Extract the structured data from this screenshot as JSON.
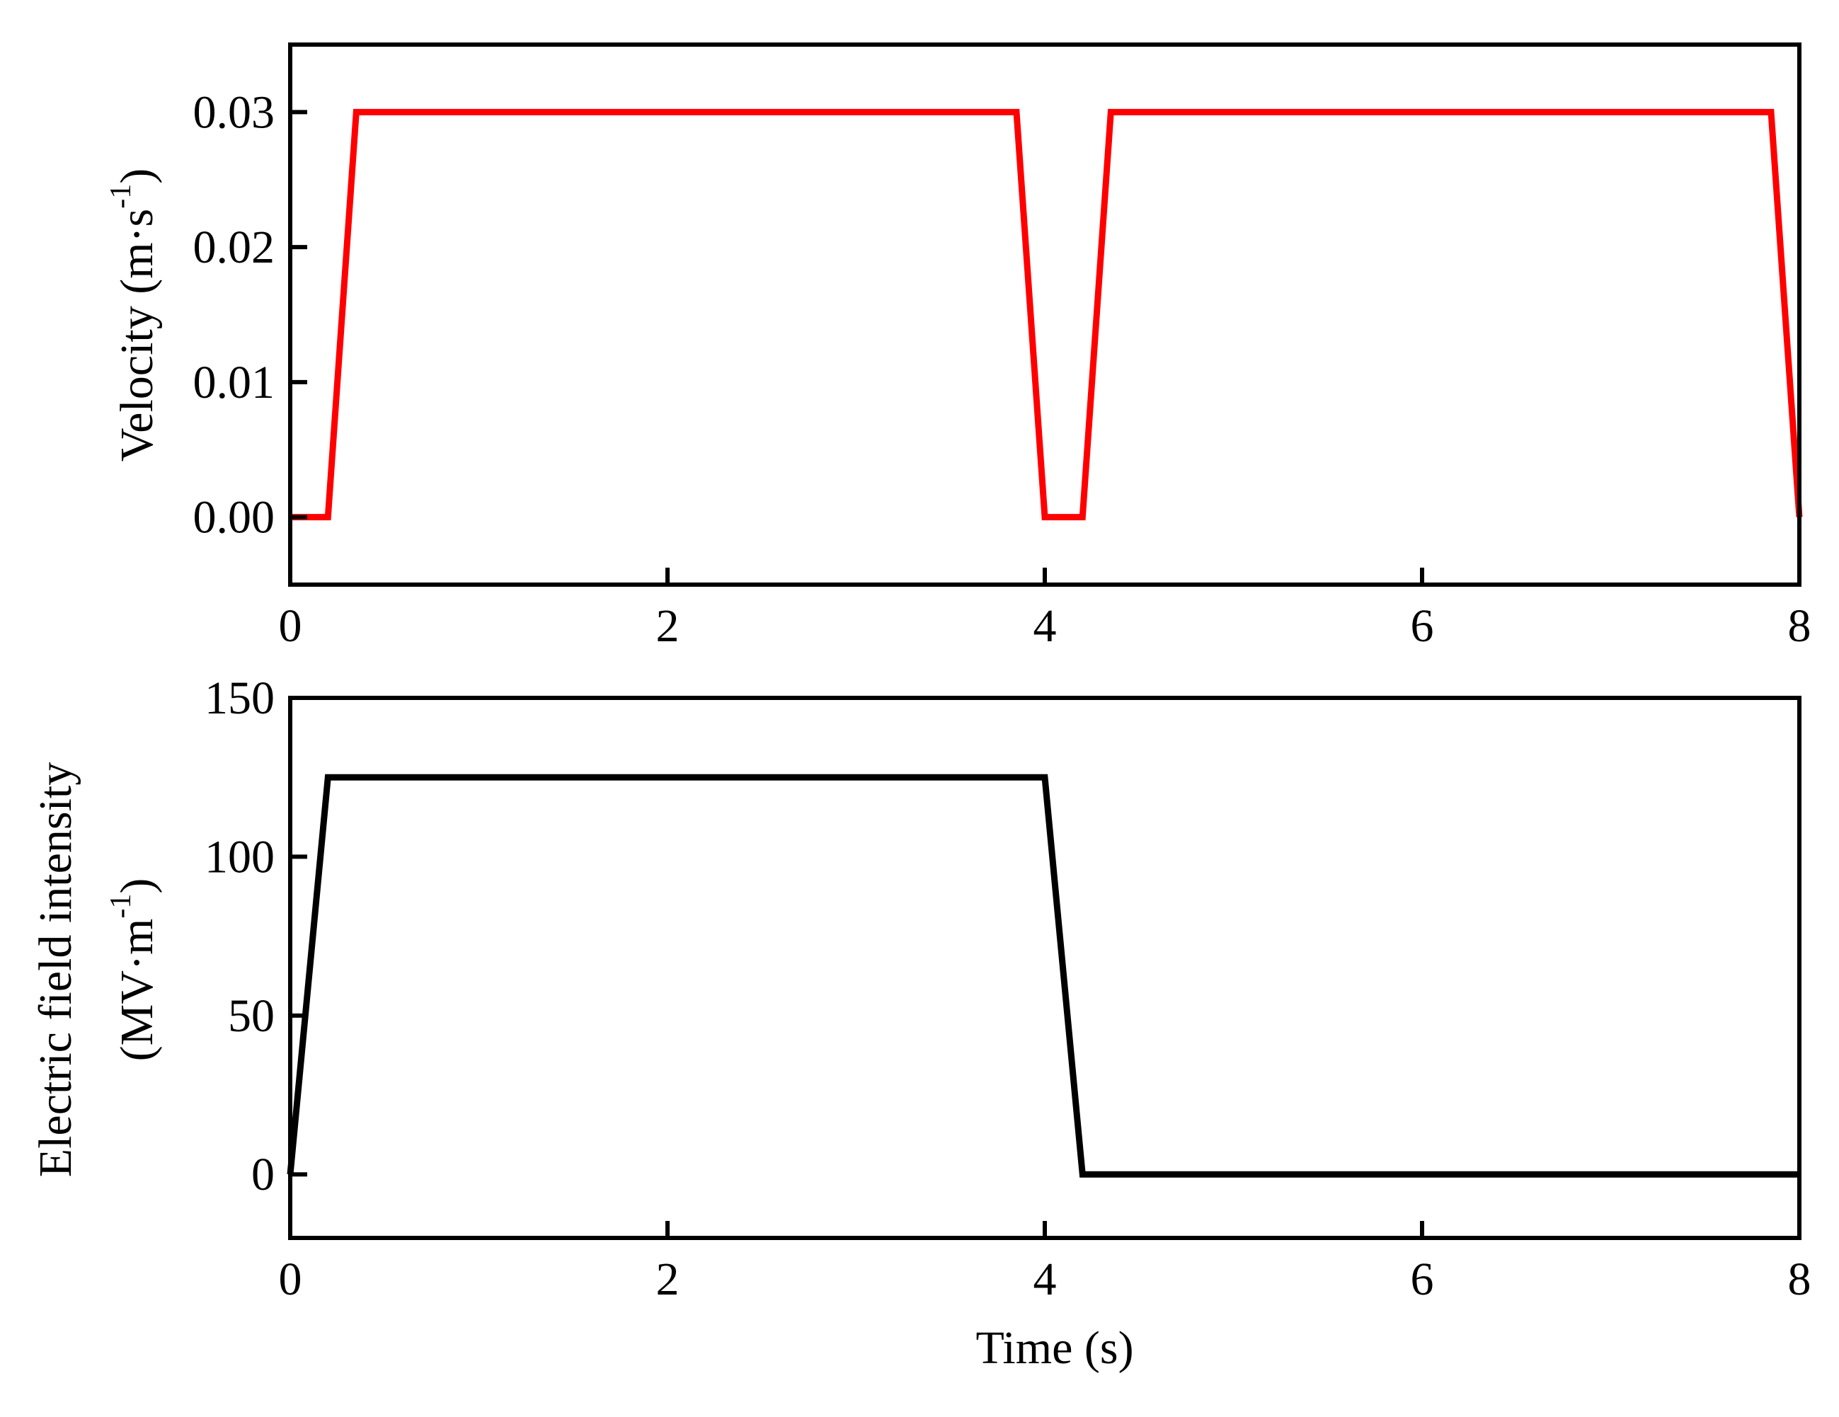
{
  "chart_data": [
    {
      "type": "line",
      "xlabel": "",
      "ylabel": "Velocity (m·s⁻¹)",
      "ylabel_parts": {
        "main": "Velocity (m·s",
        "sup": "-1",
        "close": ")"
      },
      "xlim": [
        0,
        8
      ],
      "ylim": [
        -0.005,
        0.035
      ],
      "xticks": [
        0,
        2,
        4,
        6,
        8
      ],
      "xtick_labels": [
        "0",
        "2",
        "4",
        "6",
        "8"
      ],
      "yticks": [
        0,
        0.01,
        0.02,
        0.03
      ],
      "ytick_labels": [
        "0.00",
        "0.01",
        "0.02",
        "0.03"
      ],
      "grid": false,
      "series": [
        {
          "color": "#ff0000",
          "x": [
            0,
            0.2,
            0.35,
            3.85,
            4.0,
            4.2,
            4.35,
            7.85,
            8.0
          ],
          "y": [
            0,
            0,
            0.03,
            0.03,
            0,
            0,
            0.03,
            0.03,
            0
          ]
        }
      ]
    },
    {
      "type": "line",
      "xlabel": "Time (s)",
      "ylabel_line1": "Electric field intensity",
      "ylabel_line2_parts": {
        "main": "(MV·m",
        "sup": "-1",
        "close": ")"
      },
      "xlim": [
        0,
        8
      ],
      "ylim": [
        -20,
        150
      ],
      "xticks": [
        0,
        2,
        4,
        6,
        8
      ],
      "xtick_labels": [
        "0",
        "2",
        "4",
        "6",
        "8"
      ],
      "yticks": [
        0,
        50,
        100,
        150
      ],
      "ytick_labels": [
        "0",
        "50",
        "100",
        "150"
      ],
      "grid": false,
      "series": [
        {
          "color": "#000000",
          "x": [
            0,
            0.2,
            4.0,
            4.2,
            8.0
          ],
          "y": [
            0,
            125,
            125,
            0,
            0
          ]
        }
      ]
    }
  ]
}
